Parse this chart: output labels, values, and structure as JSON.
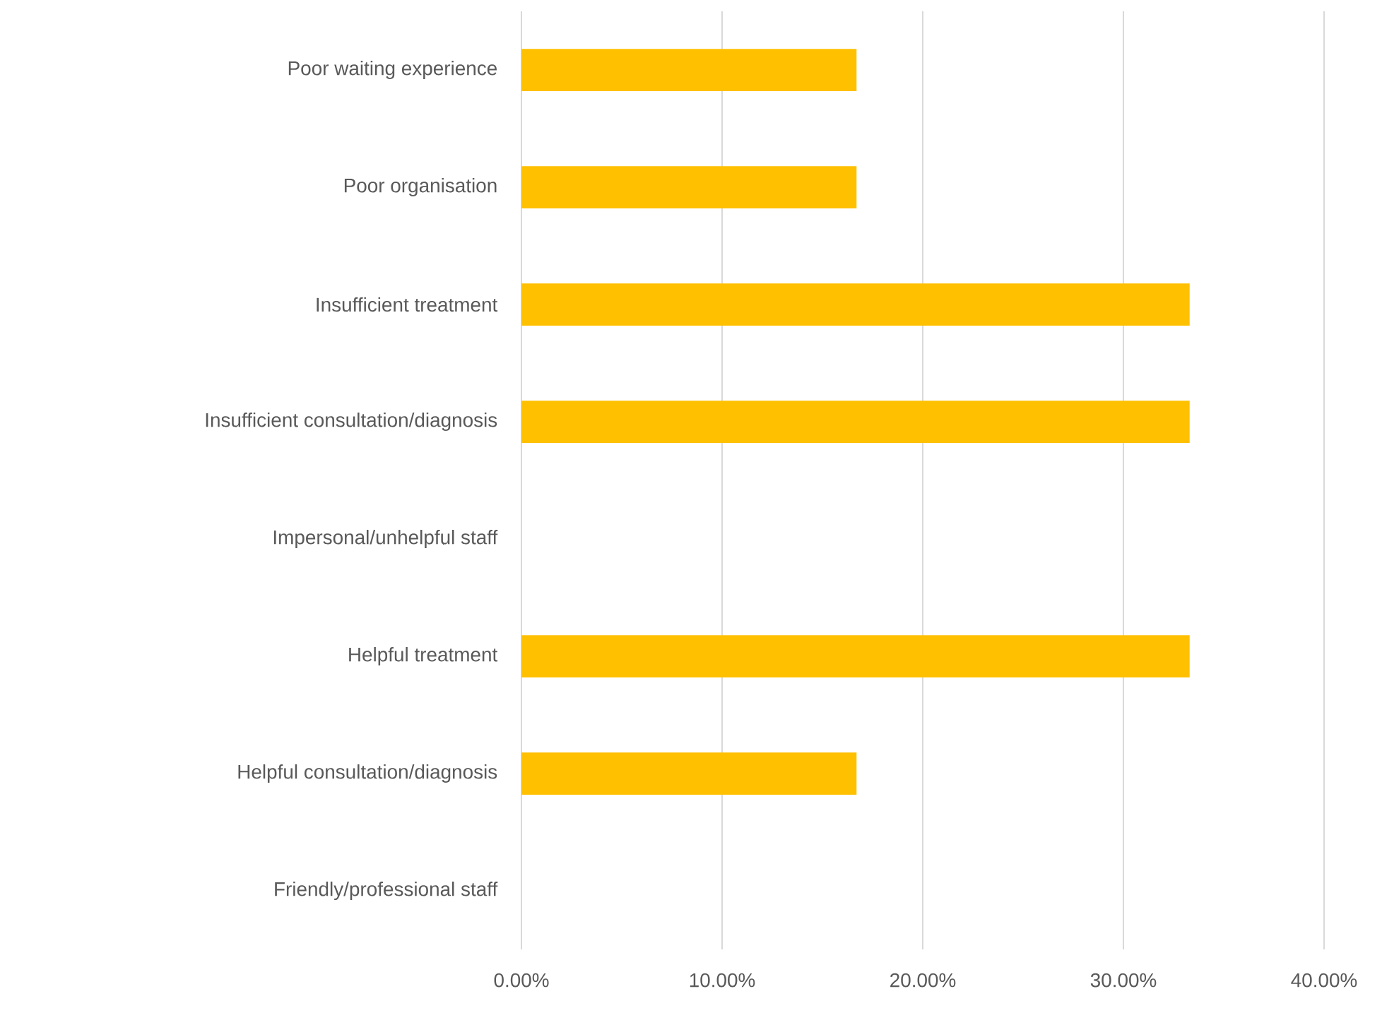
{
  "chart_data": {
    "type": "bar",
    "orientation": "horizontal",
    "categories": [
      "Poor waiting experience",
      "Poor organisation",
      "Insufficient treatment",
      "Insufficient consultation/diagnosis",
      "Impersonal/unhelpful staff",
      "Helpful treatment",
      "Helpful consultation/diagnosis",
      "Friendly/professional staff"
    ],
    "values": [
      16.7,
      16.7,
      33.3,
      33.3,
      0,
      33.3,
      16.7,
      0
    ],
    "color": "#ffc000",
    "xlim": [
      0,
      40
    ],
    "xticks": [
      {
        "value": 0,
        "label": "0.00%"
      },
      {
        "value": 10,
        "label": "10.00%"
      },
      {
        "value": 20,
        "label": "20.00%"
      },
      {
        "value": 30,
        "label": "30.00%"
      },
      {
        "value": 40,
        "label": "40.00%"
      }
    ],
    "grid": "x"
  }
}
